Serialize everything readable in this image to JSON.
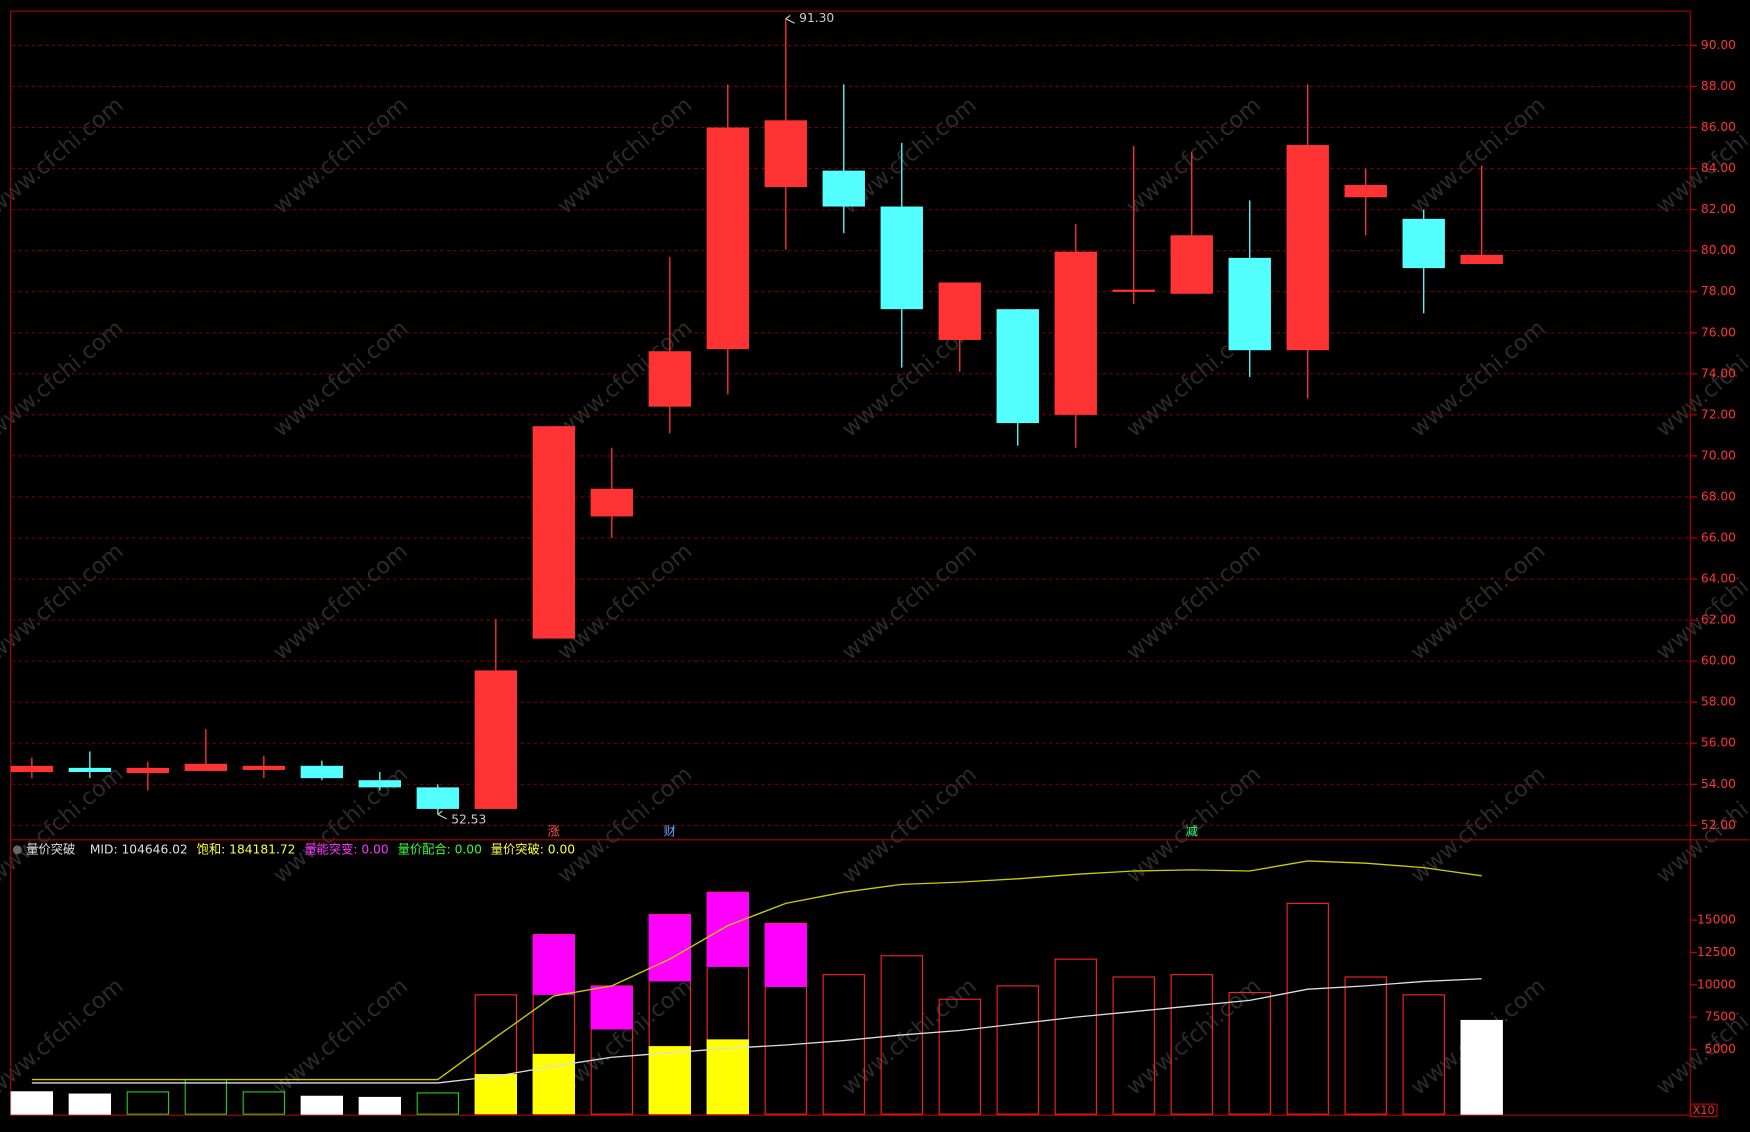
{
  "chart_data": [
    {
      "type": "candlestick",
      "open": [
        54.6,
        54.8,
        54.55,
        54.65,
        54.7,
        54.9,
        54.2,
        53.85,
        52.8,
        61.1,
        67.05,
        72.4,
        75.2,
        83.1,
        83.9,
        82.15,
        75.65,
        77.15,
        72.0,
        78.05,
        77.9,
        79.65,
        75.15,
        82.6,
        81.55,
        79.35
      ],
      "close": [
        54.9,
        54.6,
        54.8,
        55.0,
        54.9,
        54.3,
        53.85,
        52.8,
        59.55,
        71.45,
        68.4,
        75.1,
        86.0,
        86.35,
        82.15,
        77.15,
        78.45,
        71.6,
        79.95,
        78.1,
        80.75,
        75.15,
        85.15,
        83.2,
        79.15,
        79.8
      ],
      "high": [
        55.3,
        55.6,
        55.1,
        56.7,
        55.4,
        55.15,
        54.6,
        54.0,
        62.05,
        71.45,
        70.4,
        79.7,
        88.1,
        91.3,
        88.1,
        85.25,
        78.45,
        77.15,
        81.3,
        85.1,
        84.8,
        82.45,
        88.1,
        84.0,
        82.0,
        84.15
      ],
      "low": [
        54.3,
        54.3,
        53.7,
        54.7,
        54.3,
        54.2,
        53.7,
        52.53,
        52.8,
        61.1,
        66.0,
        71.1,
        73.0,
        80.05,
        80.85,
        74.3,
        74.1,
        70.5,
        70.4,
        77.4,
        77.9,
        73.85,
        72.8,
        80.75,
        76.95,
        79.35
      ],
      "up_color": "#ff3333",
      "down_color": "#54ffff",
      "ylim": [
        51.35,
        91.67
      ],
      "yticks": [
        {
          "value": 52,
          "label": "52.00"
        },
        {
          "value": 54,
          "label": "54.00"
        },
        {
          "value": 56,
          "label": "56.00"
        },
        {
          "value": 58,
          "label": "58.00"
        },
        {
          "value": 60,
          "label": "60.00"
        },
        {
          "value": 62,
          "label": "62.00"
        },
        {
          "value": 64,
          "label": "64.00"
        },
        {
          "value": 66,
          "label": "66.00"
        },
        {
          "value": 68,
          "label": "68.00"
        },
        {
          "value": 70,
          "label": "70.00"
        },
        {
          "value": 72,
          "label": "72.00"
        },
        {
          "value": 74,
          "label": "74.00"
        },
        {
          "value": 76,
          "label": "76.00"
        },
        {
          "value": 78,
          "label": "78.00"
        },
        {
          "value": 80,
          "label": "80.00"
        },
        {
          "value": 82,
          "label": "82.00"
        },
        {
          "value": 84,
          "label": "84.00"
        },
        {
          "value": 86,
          "label": "86.00"
        },
        {
          "value": 88,
          "label": "88.00"
        },
        {
          "value": 90,
          "label": "90.00"
        }
      ],
      "grid": true,
      "annotations": [
        {
          "text": "91.30",
          "index": 13,
          "value": 91.3
        },
        {
          "text": "52.53",
          "index": 7,
          "value": 52.53
        }
      ],
      "markers": [
        {
          "text": "涨",
          "index": 9,
          "color": "#ff5555"
        },
        {
          "text": "财",
          "index": 11,
          "color": "#6aa8ff"
        },
        {
          "text": "减",
          "index": 20,
          "color": "#33ff77"
        }
      ],
      "watermark": "www.cfchi.com"
    },
    {
      "type": "bar",
      "title": "量价突破",
      "legend": [
        {
          "text": "MID: 104646.02",
          "color": "#e0e0e0"
        },
        {
          "text": "饱和: 184181.72",
          "color": "#ffff33"
        },
        {
          "text": "量能突变: 0.00",
          "color": "#ff33ff"
        },
        {
          "text": "量价配合: 0.00",
          "color": "#33ff33"
        },
        {
          "text": "量价突破: 0.00",
          "color": "#ffff33"
        }
      ],
      "values": [
        1724,
        1550,
        1720,
        2670,
        1720,
        1380,
        1290,
        1640,
        9220,
        13880,
        9910,
        15430,
        17150,
        14740,
        10780,
        12240,
        8880,
        9910,
        11980,
        10600,
        10780,
        9400,
        16290,
        10600,
        9220,
        7240
      ],
      "bar_colors": [
        "#ffffff",
        "#ffffff",
        "#22cc22",
        "#22cc22",
        "#22cc22",
        "#ffffff",
        "#ffffff",
        "#22cc22",
        "#ff2222",
        "#ff2222",
        "#ff2222",
        "#ff2222",
        "#ff2222",
        "#ff2222",
        "#ff2222",
        "#ff2222",
        "#ff2222",
        "#ff2222",
        "#ff2222",
        "#ff2222",
        "#ff2222",
        "#ff2222",
        "#ff2222",
        "#ff2222",
        "#ff2222",
        "#ffffff"
      ],
      "bar_filled": [
        true,
        true,
        false,
        false,
        false,
        true,
        true,
        false,
        false,
        false,
        false,
        false,
        false,
        false,
        false,
        false,
        false,
        false,
        false,
        false,
        false,
        false,
        false,
        false,
        false,
        true
      ],
      "fill_overlay": {
        "color": "#ffff00",
        "values": [
          null,
          null,
          null,
          null,
          null,
          null,
          null,
          null,
          3100,
          4660,
          null,
          5260,
          5780,
          null,
          null,
          null,
          null,
          null,
          null,
          null,
          null,
          null,
          null,
          null,
          null,
          null
        ]
      },
      "band_overlay": {
        "color": "#ff00ff",
        "from": [
          null,
          null,
          null,
          null,
          null,
          null,
          null,
          null,
          null,
          9220,
          6550,
          10260,
          11380,
          9830,
          null,
          null,
          null,
          null,
          null,
          null,
          null,
          null,
          null,
          null,
          null,
          null
        ],
        "to": [
          null,
          null,
          null,
          null,
          null,
          null,
          null,
          null,
          null,
          13880,
          9910,
          15430,
          17150,
          14740,
          null,
          null,
          null,
          null,
          null,
          null,
          null,
          null,
          null,
          null,
          null,
          null
        ]
      },
      "series": [
        {
          "color": "#dddddd",
          "values": [
            2414,
            2414,
            2414,
            2414,
            2414,
            2414,
            2414,
            2414,
            2931,
            3707,
            4397,
            4741,
            5086,
            5345,
            5690,
            6121,
            6466,
            6983,
            7500,
            7931,
            8362,
            8793,
            9655,
            9914,
            10259,
            10465
          ]
        },
        {
          "color": "#cccc00",
          "values": [
            2672,
            2672,
            2672,
            2672,
            2672,
            2672,
            2672,
            2672,
            5948,
            9138,
            9914,
            11983,
            14569,
            16293,
            17155,
            17759,
            17931,
            18190,
            18534,
            18793,
            18879,
            18793,
            19569,
            19397,
            19052,
            18418
          ]
        }
      ],
      "ylim": [
        0,
        20600
      ],
      "yticks": [
        5000,
        7500,
        10000,
        12500,
        15000
      ],
      "axis_note": "X10"
    }
  ]
}
